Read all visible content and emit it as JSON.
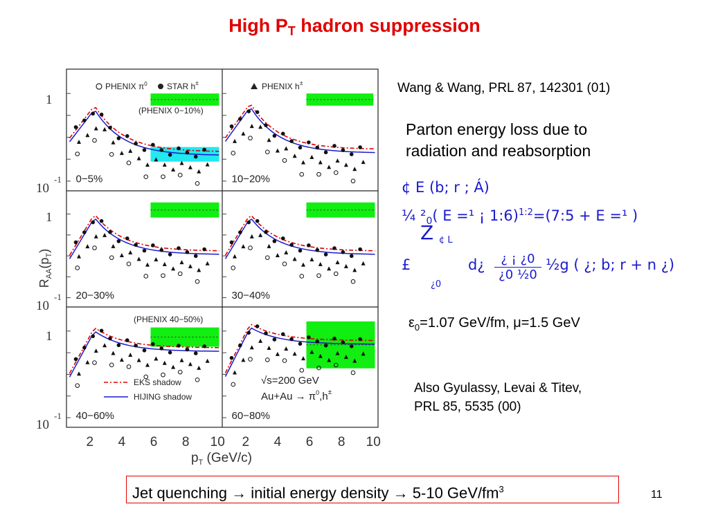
{
  "slide": {
    "title_main": "High P",
    "title_sub": "T",
    "title_rest": " hadron suppression",
    "page_number": "11"
  },
  "right_panel": {
    "reference_1": "Wang & Wang, PRL 87, 142301 (01)",
    "parton_line_1": "Parton energy loss due to",
    "parton_line_2": "radiation and reabsorption",
    "formula_line_1": "¢ E (b; r ; Á)",
    "formula_line_2a": "¼ ²",
    "formula_line_2b": "0",
    "formula_line_2c": "( E =¹  ¡  1:6)",
    "formula_line_2d": "1:2",
    "formula_line_2e": "=(7:5 +  E =¹ )",
    "formula_int": "Z",
    "formula_int_upper": "¢ L",
    "formula_line_3a": "£",
    "formula_line_3b": "d¿",
    "formula_frac_num": "¿ ¡  ¿0",
    "formula_frac_den": "¿0 ½0",
    "formula_line_3c": "½g ( ¿; b; r  +  n ¿)",
    "formula_int_lower": "¿0",
    "params_eps": "ε",
    "params_eps_sub": "0",
    "params_rest": "=1.07 GeV/fm, μ=1.5 GeV",
    "reference_2_line_1": "Also Gyulassy, Levai & Titev,",
    "reference_2_line_2": "PRL 85, 5535 (00)"
  },
  "bottom_box": {
    "text": "Jet quenching → initial energy density → 5-10 GeV/fm",
    "sup": "3"
  },
  "figure": {
    "y_axis_label": "R",
    "y_axis_label_sub": "AA",
    "y_axis_label_rest": "(p",
    "y_axis_label_sub2": "T",
    "y_axis_label_end": ")",
    "x_axis_label": "p",
    "x_axis_label_sub": "T",
    "x_axis_label_rest": " (GeV/c)",
    "x_ticks": [
      "2",
      "4",
      "6",
      "8",
      "10"
    ],
    "y_tick_one": "1",
    "y_tick_ten": "10",
    "y_tick_exp": "-1",
    "legend_phenix_pi0": "PHENIX π",
    "legend_phenix_pi0_sup": "0",
    "legend_star_h": "STAR h",
    "legend_star_h_sup": "±",
    "legend_phenix_h": "PHENIX h",
    "legend_phenix_h_sup": "±",
    "note_0_10": "(PHENIX 0−10%)",
    "note_40_50": "(PHENIX 40−50%)",
    "legend_eks": "EKS shadow",
    "legend_hijing": "HIJING shadow",
    "energy_label": "√s=200 GeV",
    "system_label": "Au+Au  →  π",
    "system_label_sup1": "0",
    "system_label_mid": ",h",
    "system_label_sup2": "±",
    "panels": [
      {
        "centrality": "0−5%"
      },
      {
        "centrality": "10−20%"
      },
      {
        "centrality": "20−30%"
      },
      {
        "centrality": "30−40%"
      },
      {
        "centrality": "40−60%"
      },
      {
        "centrality": "60−80%"
      }
    ],
    "colors": {
      "eks_line": "#e00000",
      "hijing_line": "#1a1acd",
      "band": "#11ee11",
      "band_cyan": "#22e8f0"
    }
  }
}
